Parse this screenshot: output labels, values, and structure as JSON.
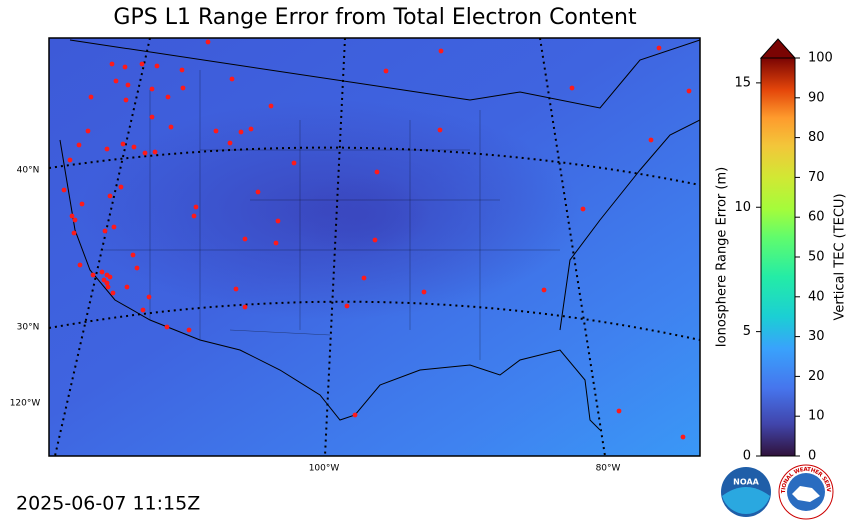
{
  "title": "GPS L1 Range Error from Total Electron Content",
  "timestamp": "2025-06-07 11:15Z",
  "map": {
    "graticule_labels": {
      "lat_40": "40°N",
      "lat_30": "30°N",
      "lon_120": "120°W",
      "lon_100": "100°W",
      "lon_80": "80°W"
    }
  },
  "colorbar": {
    "left_label": "Ionosphere Range Error (m)",
    "right_label": "Vertical TEC (TECU)",
    "left_lim": [
      0,
      16
    ],
    "left_ticks": [
      0,
      5,
      10,
      15
    ],
    "right_lim": [
      0,
      100
    ],
    "right_ticks": [
      0,
      10,
      20,
      30,
      40,
      50,
      60,
      70,
      80,
      90,
      100
    ]
  },
  "logos": {
    "noaa": "NOAA",
    "nws": "NATIONAL WEATHER SERVICE"
  }
}
